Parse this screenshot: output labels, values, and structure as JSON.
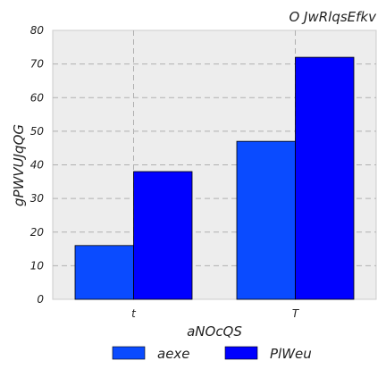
{
  "chart_data": {
    "type": "bar",
    "title": "O JwRlqsEfkv",
    "xlabel": "aNOcQS",
    "ylabel": "gPWVUJqQG",
    "categories": [
      "t",
      "T"
    ],
    "series": [
      {
        "name": "aexe",
        "values": [
          16,
          47
        ],
        "color": "#0a4bff"
      },
      {
        "name": "PlWeu",
        "values": [
          38,
          72
        ],
        "color": "#0000ff"
      }
    ],
    "ylim": [
      0,
      80
    ],
    "yticks": [
      0,
      10,
      20,
      30,
      40,
      50,
      60,
      70,
      80
    ],
    "grid": true,
    "legend_position": "below"
  },
  "colors": {
    "plot_background": "#ededed",
    "grid": "#b0b0b0",
    "bar_edge": "#000000"
  }
}
